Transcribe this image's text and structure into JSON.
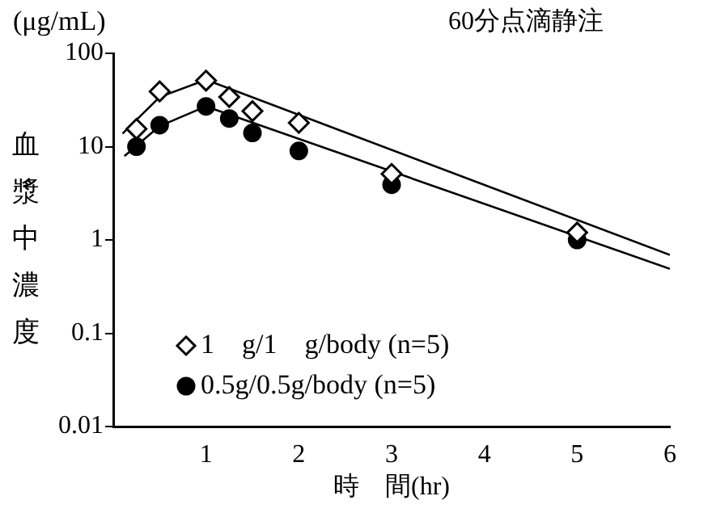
{
  "chart_data": {
    "type": "scatter",
    "title": "60分点滴静注",
    "xlabel": "時　間(hr)",
    "ylabel": "血漿中濃度",
    "annotations": [
      "(μg/mL)"
    ],
    "xlim": [
      0,
      6
    ],
    "xticks": [
      1,
      2,
      3,
      4,
      5,
      6
    ],
    "ylim": [
      0.01,
      100
    ],
    "yticks": [
      100,
      10,
      1,
      0.1,
      0.01
    ],
    "log": true,
    "grid": false,
    "legend": "bottom left",
    "series": [
      {
        "name": "1　g/1　g/body (n=5)",
        "type": "scatter",
        "marker": "diamond",
        "color": "#000000",
        "x": [
          0.25,
          0.5,
          1,
          1.25,
          1.5,
          2,
          3,
          5
        ],
        "values": [
          15.5,
          39,
          51,
          34,
          24,
          18,
          5.1,
          1.2
        ]
      },
      {
        "name": "0.5g/0.5g/body (n=5)",
        "type": "scatter",
        "marker": "circle",
        "color": "#000000",
        "x": [
          0.25,
          0.5,
          1,
          1.25,
          1.5,
          2,
          3,
          5
        ],
        "values": [
          10,
          17,
          27,
          20,
          14,
          9,
          3.9,
          1.0
        ]
      },
      {
        "type": "line",
        "marker": "none",
        "color": "#000000",
        "x": [
          0.1,
          0.5,
          1,
          6
        ],
        "values": [
          13.8,
          34,
          52,
          0.69
        ]
      },
      {
        "type": "line",
        "marker": "none",
        "color": "#000000",
        "x": [
          0.12,
          0.5,
          1,
          6
        ],
        "values": [
          7.9,
          16.6,
          27,
          0.49
        ]
      }
    ]
  }
}
